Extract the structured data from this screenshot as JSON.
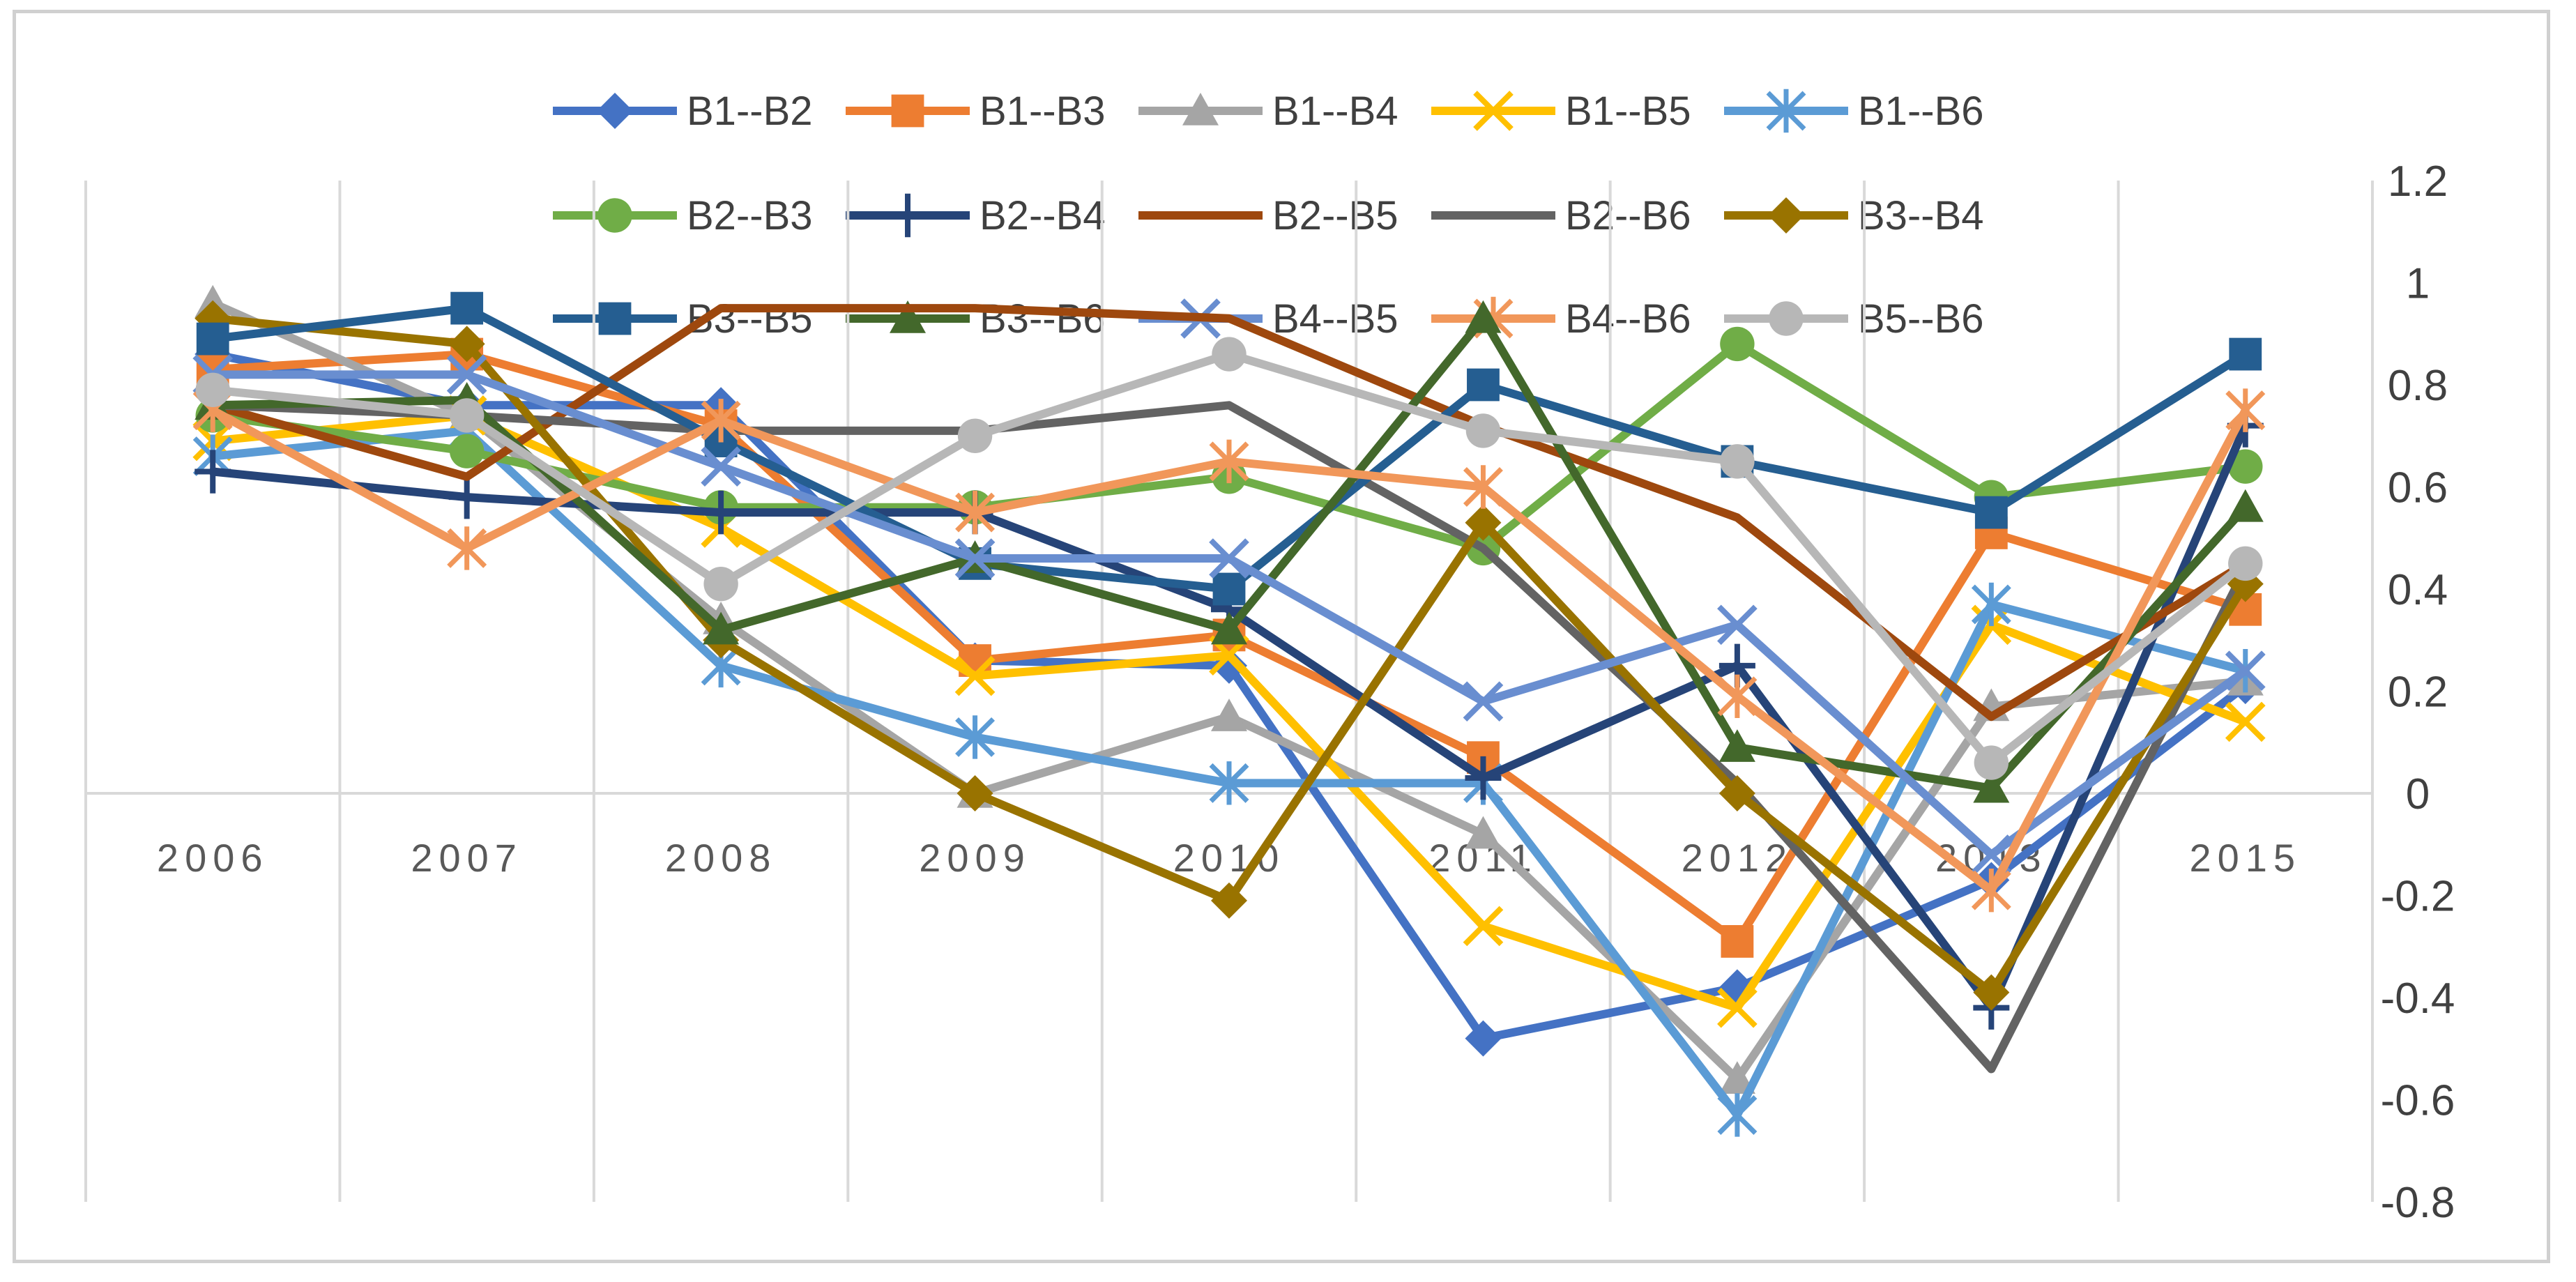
{
  "chart_data": {
    "type": "line",
    "title": "",
    "xlabel": "",
    "ylabel": "",
    "y_axis_position": "right",
    "ylim": [
      -0.8,
      1.2
    ],
    "yticks": [
      1.2,
      1,
      0.8,
      0.6,
      0.4,
      0.2,
      0,
      -0.2,
      -0.4,
      -0.6,
      -0.8
    ],
    "ytick_labels": [
      "1.2",
      "1",
      "0.8",
      "0.6",
      "0.4",
      "0.2",
      "0",
      "-0.2",
      "-0.4",
      "-0.6",
      "-0.8"
    ],
    "grid": "vertical",
    "legend_position": "top",
    "categories": [
      "2006",
      "2007",
      "2008",
      "2009",
      "2010",
      "2011",
      "2012",
      "2013",
      "2015"
    ],
    "series": [
      {
        "name": "B1--B2",
        "color": "#4472c4",
        "marker": "diamond",
        "values": [
          0.86,
          0.76,
          0.76,
          0.26,
          0.25,
          -0.48,
          -0.38,
          -0.17,
          0.21
        ]
      },
      {
        "name": "B1--B3",
        "color": "#ed7d31",
        "marker": "square",
        "values": [
          0.83,
          0.86,
          0.72,
          0.26,
          0.31,
          0.07,
          -0.29,
          0.51,
          0.36
        ]
      },
      {
        "name": "B1--B4",
        "color": "#a5a5a5",
        "marker": "triangle",
        "values": [
          0.96,
          0.74,
          0.34,
          0.0,
          0.15,
          -0.08,
          -0.56,
          0.17,
          0.22
        ]
      },
      {
        "name": "B1--B5",
        "color": "#ffc000",
        "marker": "x",
        "values": [
          0.69,
          0.74,
          0.52,
          0.23,
          0.27,
          -0.26,
          -0.42,
          0.33,
          0.14
        ]
      },
      {
        "name": "B1--B6",
        "color": "#5b9bd5",
        "marker": "star",
        "values": [
          0.66,
          0.71,
          0.25,
          0.11,
          0.02,
          0.02,
          -0.63,
          0.37,
          0.24
        ]
      },
      {
        "name": "B2--B3",
        "color": "#70ad47",
        "marker": "circle",
        "values": [
          0.74,
          0.67,
          0.56,
          0.56,
          0.62,
          0.48,
          0.88,
          0.58,
          0.64
        ]
      },
      {
        "name": "B2--B4",
        "color": "#264478",
        "marker": "plus",
        "values": [
          0.63,
          0.58,
          0.55,
          0.55,
          0.36,
          0.03,
          0.25,
          -0.42,
          0.72
        ]
      },
      {
        "name": "B2--B5",
        "color": "#9e480e",
        "marker": "none",
        "values": [
          0.76,
          0.62,
          0.95,
          0.95,
          0.93,
          0.72,
          0.54,
          0.15,
          0.45
        ]
      },
      {
        "name": "B2--B6",
        "color": "#636363",
        "marker": "none",
        "values": [
          0.76,
          0.74,
          0.71,
          0.71,
          0.76,
          0.48,
          0.02,
          -0.54,
          0.44
        ]
      },
      {
        "name": "B3--B4",
        "color": "#997300",
        "marker": "diamond",
        "values": [
          0.93,
          0.88,
          0.3,
          0.0,
          -0.21,
          0.53,
          0.0,
          -0.39,
          0.41
        ]
      },
      {
        "name": "B3--B5",
        "color": "#255e91",
        "marker": "square",
        "values": [
          0.89,
          0.95,
          0.69,
          0.45,
          0.4,
          0.8,
          0.65,
          0.55,
          0.86
        ]
      },
      {
        "name": "B3--B6",
        "color": "#43682b",
        "marker": "triangle",
        "values": [
          0.76,
          0.77,
          0.32,
          0.46,
          0.32,
          0.93,
          0.09,
          0.01,
          0.56
        ]
      },
      {
        "name": "B4--B5",
        "color": "#698ed0",
        "marker": "x",
        "values": [
          0.82,
          0.82,
          0.64,
          0.46,
          0.46,
          0.18,
          0.33,
          -0.12,
          0.24
        ]
      },
      {
        "name": "B4--B6",
        "color": "#f1975a",
        "marker": "star",
        "values": [
          0.75,
          0.48,
          0.73,
          0.55,
          0.65,
          0.6,
          0.19,
          -0.19,
          0.75
        ]
      },
      {
        "name": "B5--B6",
        "color": "#b7b7b7",
        "marker": "circle",
        "values": [
          0.79,
          0.74,
          0.41,
          0.7,
          0.86,
          0.71,
          0.65,
          0.06,
          0.45
        ]
      }
    ]
  }
}
